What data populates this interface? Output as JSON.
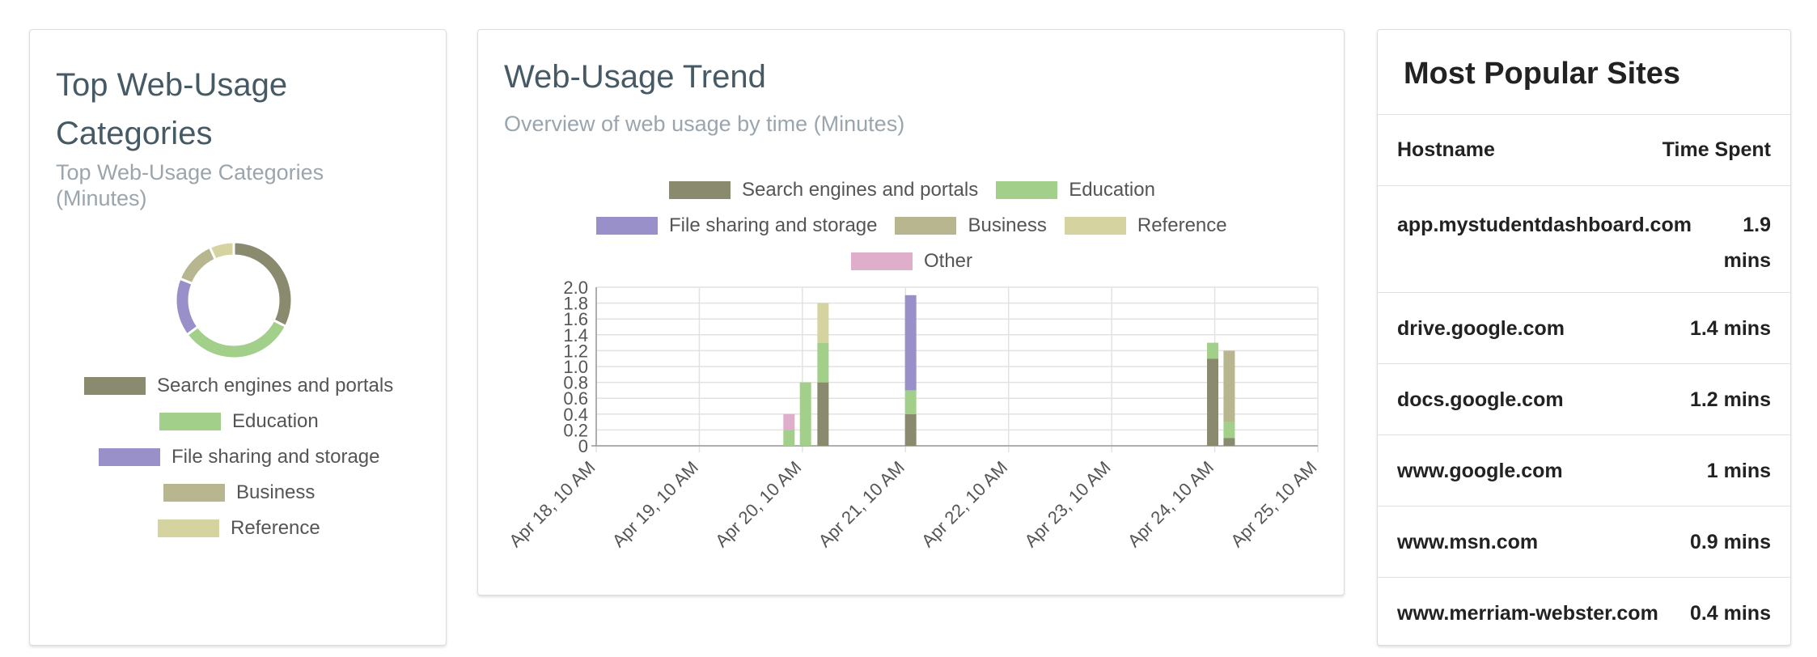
{
  "categories_card": {
    "title": "Top Web-Usage Categories",
    "subtitle": "Top Web-Usage Categories (Minutes)",
    "legend": [
      {
        "label": "Search engines and portals",
        "color": "#8a8a6f"
      },
      {
        "label": "Education",
        "color": "#a2cf8a"
      },
      {
        "label": "File sharing and storage",
        "color": "#9a90c9"
      },
      {
        "label": "Business",
        "color": "#b7b68f"
      },
      {
        "label": "Reference",
        "color": "#d5d4a0"
      }
    ]
  },
  "trend_card": {
    "title": "Web-Usage Trend",
    "subtitle": "Overview of web usage by time (Minutes)",
    "legend": [
      {
        "label": "Search engines and portals",
        "color": "#8a8a6f"
      },
      {
        "label": "Education",
        "color": "#a2cf8a"
      },
      {
        "label": "File sharing and storage",
        "color": "#9a90c9"
      },
      {
        "label": "Business",
        "color": "#b7b68f"
      },
      {
        "label": "Reference",
        "color": "#d5d4a0"
      },
      {
        "label": "Other",
        "color": "#deaecb"
      }
    ]
  },
  "sites_card": {
    "title": "Most Popular Sites",
    "header": {
      "hostname": "Hostname",
      "time": "Time Spent"
    },
    "rows": [
      {
        "host": "app.mystudentdashboard.com",
        "time_value": "1.9",
        "time_unit": "mins"
      },
      {
        "host": "drive.google.com",
        "time": "1.4 mins"
      },
      {
        "host": "docs.google.com",
        "time": "1.2 mins"
      },
      {
        "host": "www.google.com",
        "time": "1 mins"
      },
      {
        "host": "www.msn.com",
        "time": "0.9 mins"
      },
      {
        "host": "www.merriam-webster.com",
        "time": "0.4 mins"
      }
    ]
  },
  "chart_data": [
    {
      "type": "pie",
      "donut": true,
      "title": "Top Web-Usage Categories",
      "subtitle": "Top Web-Usage Categories (Minutes)",
      "labels": [
        "Search engines and portals",
        "Education",
        "File sharing and storage",
        "Business",
        "Reference"
      ],
      "values": [
        2.4,
        2.4,
        1.2,
        0.9,
        0.5
      ],
      "colors": [
        "#8a8a6f",
        "#a2cf8a",
        "#9a90c9",
        "#b7b68f",
        "#d5d4a0"
      ],
      "legend": "bottom"
    },
    {
      "type": "bar",
      "stacked": true,
      "title": "Web-Usage Trend",
      "subtitle": "Overview of web usage by time (Minutes)",
      "x_ticks": [
        "Apr 18, 10 AM",
        "Apr 19, 10 AM",
        "Apr 20, 10 AM",
        "Apr 21, 10 AM",
        "Apr 22, 10 AM",
        "Apr 23, 10 AM",
        "Apr 24, 10 AM",
        "Apr 25, 10 AM"
      ],
      "y_ticks": [
        "0",
        "0.2",
        "0.4",
        "0.6",
        "0.8",
        "1.0",
        "1.2",
        "1.4",
        "1.6",
        "1.8",
        "2.0"
      ],
      "ylim": [
        0,
        2.0
      ],
      "xlim_days": [
        0,
        7
      ],
      "grid": true,
      "legend": "top",
      "series_order": [
        "Search engines and portals",
        "Education",
        "File sharing and storage",
        "Business",
        "Reference",
        "Other"
      ],
      "colors": {
        "Search engines and portals": "#8a8a6f",
        "Education": "#a2cf8a",
        "File sharing and storage": "#9a90c9",
        "Business": "#b7b68f",
        "Reference": "#d5d4a0",
        "Other": "#deaecb"
      },
      "bars": [
        {
          "x": "Apr 20, 7 AM",
          "x_days": 1.87,
          "segments": {
            "Education": 0.2,
            "Other": 0.2
          }
        },
        {
          "x": "Apr 20, 8 AM",
          "x_days": 2.03,
          "segments": {
            "Education": 0.8
          }
        },
        {
          "x": "Apr 20, 11 AM",
          "x_days": 2.2,
          "segments": {
            "Search engines and portals": 0.8,
            "Education": 0.5,
            "Reference": 0.5
          }
        },
        {
          "x": "Apr 21, 10 AM",
          "x_days": 3.05,
          "segments": {
            "Search engines and portals": 0.4,
            "Education": 0.3,
            "File sharing and storage": 1.2
          }
        },
        {
          "x": "Apr 24, 10 AM",
          "x_days": 5.98,
          "segments": {
            "Search engines and portals": 1.1,
            "Education": 0.2
          }
        },
        {
          "x": "Apr 24, 11 AM",
          "x_days": 6.14,
          "segments": {
            "Search engines and portals": 0.1,
            "Education": 0.2,
            "Business": 0.9
          }
        }
      ]
    }
  ]
}
